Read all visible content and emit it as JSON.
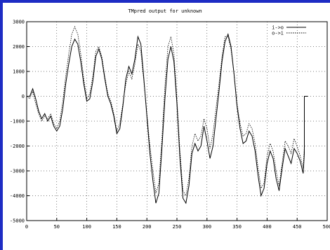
{
  "chart_data": {
    "type": "line",
    "title": "TMpred output for unknown",
    "xlim": [
      0,
      500
    ],
    "ylim": [
      -5000,
      3000
    ],
    "x_ticks": [
      0,
      50,
      100,
      150,
      200,
      250,
      300,
      350,
      400,
      450,
      500
    ],
    "x_tick_labels": [
      "0",
      "50",
      "100",
      "150",
      "200",
      "250",
      "300",
      "350",
      "400",
      "450",
      "500"
    ],
    "y_ticks": [
      -5000,
      -4000,
      -3000,
      -2000,
      -1000,
      0,
      1000,
      2000,
      3000
    ],
    "y_tick_labels": [
      "-5000",
      "-4000",
      "-3000",
      "-2000",
      "-1000",
      "0",
      "1000",
      "2000",
      "3000"
    ],
    "grid": true,
    "legend_position": "top-right",
    "series": [
      {
        "name": "i->o",
        "style": "solid",
        "points": [
          [
            0,
            0
          ],
          [
            5,
            0
          ],
          [
            10,
            300
          ],
          [
            15,
            -100
          ],
          [
            20,
            -600
          ],
          [
            25,
            -900
          ],
          [
            30,
            -700
          ],
          [
            35,
            -1000
          ],
          [
            40,
            -800
          ],
          [
            45,
            -1200
          ],
          [
            50,
            -1400
          ],
          [
            55,
            -1200
          ],
          [
            60,
            -500
          ],
          [
            65,
            500
          ],
          [
            70,
            1300
          ],
          [
            75,
            2000
          ],
          [
            80,
            2300
          ],
          [
            85,
            2100
          ],
          [
            90,
            1400
          ],
          [
            95,
            500
          ],
          [
            100,
            -200
          ],
          [
            105,
            -100
          ],
          [
            110,
            600
          ],
          [
            115,
            1600
          ],
          [
            120,
            1900
          ],
          [
            125,
            1500
          ],
          [
            130,
            700
          ],
          [
            135,
            0
          ],
          [
            140,
            -300
          ],
          [
            145,
            -800
          ],
          [
            150,
            -1500
          ],
          [
            155,
            -1300
          ],
          [
            160,
            -400
          ],
          [
            165,
            700
          ],
          [
            170,
            1200
          ],
          [
            175,
            900
          ],
          [
            180,
            1500
          ],
          [
            185,
            2400
          ],
          [
            190,
            2100
          ],
          [
            195,
            700
          ],
          [
            200,
            -800
          ],
          [
            205,
            -2300
          ],
          [
            210,
            -3400
          ],
          [
            215,
            -4300
          ],
          [
            220,
            -3900
          ],
          [
            225,
            -2100
          ],
          [
            230,
            -100
          ],
          [
            235,
            1500
          ],
          [
            240,
            2000
          ],
          [
            245,
            1400
          ],
          [
            250,
            -300
          ],
          [
            255,
            -2500
          ],
          [
            260,
            -4100
          ],
          [
            265,
            -4300
          ],
          [
            270,
            -3600
          ],
          [
            275,
            -2300
          ],
          [
            280,
            -1900
          ],
          [
            285,
            -2200
          ],
          [
            290,
            -2000
          ],
          [
            295,
            -1200
          ],
          [
            300,
            -1800
          ],
          [
            305,
            -2500
          ],
          [
            310,
            -2000
          ],
          [
            315,
            -900
          ],
          [
            320,
            200
          ],
          [
            325,
            1400
          ],
          [
            330,
            2200
          ],
          [
            335,
            2500
          ],
          [
            340,
            2000
          ],
          [
            345,
            900
          ],
          [
            350,
            -400
          ],
          [
            355,
            -1300
          ],
          [
            360,
            -1900
          ],
          [
            365,
            -1800
          ],
          [
            370,
            -1400
          ],
          [
            375,
            -1600
          ],
          [
            380,
            -2200
          ],
          [
            385,
            -3200
          ],
          [
            390,
            -4000
          ],
          [
            395,
            -3700
          ],
          [
            400,
            -2700
          ],
          [
            405,
            -2200
          ],
          [
            410,
            -2500
          ],
          [
            415,
            -3300
          ],
          [
            420,
            -3800
          ],
          [
            425,
            -2900
          ],
          [
            430,
            -2100
          ],
          [
            435,
            -2400
          ],
          [
            440,
            -2700
          ],
          [
            445,
            -2100
          ],
          [
            450,
            -2300
          ],
          [
            455,
            -2600
          ],
          [
            460,
            -3100
          ],
          [
            462,
            -2300
          ],
          [
            462,
            0
          ],
          [
            468,
            0
          ]
        ]
      },
      {
        "name": "o->i",
        "style": "dotted",
        "points": [
          [
            0,
            0
          ],
          [
            5,
            -100
          ],
          [
            10,
            200
          ],
          [
            15,
            -300
          ],
          [
            20,
            -700
          ],
          [
            25,
            -1000
          ],
          [
            30,
            -800
          ],
          [
            35,
            -900
          ],
          [
            40,
            -700
          ],
          [
            45,
            -1100
          ],
          [
            50,
            -1300
          ],
          [
            55,
            -1000
          ],
          [
            60,
            -200
          ],
          [
            65,
            800
          ],
          [
            70,
            1700
          ],
          [
            75,
            2500
          ],
          [
            80,
            2800
          ],
          [
            85,
            2500
          ],
          [
            90,
            1700
          ],
          [
            95,
            700
          ],
          [
            100,
            -100
          ],
          [
            105,
            100
          ],
          [
            110,
            800
          ],
          [
            115,
            1800
          ],
          [
            120,
            2000
          ],
          [
            125,
            1600
          ],
          [
            130,
            800
          ],
          [
            135,
            100
          ],
          [
            140,
            -200
          ],
          [
            145,
            -700
          ],
          [
            150,
            -1400
          ],
          [
            155,
            -1100
          ],
          [
            160,
            -300
          ],
          [
            165,
            500
          ],
          [
            170,
            1000
          ],
          [
            175,
            700
          ],
          [
            180,
            1300
          ],
          [
            185,
            2100
          ],
          [
            190,
            1800
          ],
          [
            195,
            600
          ],
          [
            200,
            -700
          ],
          [
            205,
            -2000
          ],
          [
            210,
            -3000
          ],
          [
            215,
            -3900
          ],
          [
            220,
            -3500
          ],
          [
            225,
            -1700
          ],
          [
            230,
            400
          ],
          [
            235,
            2000
          ],
          [
            240,
            2400
          ],
          [
            245,
            1700
          ],
          [
            250,
            -100
          ],
          [
            255,
            -2200
          ],
          [
            260,
            -3800
          ],
          [
            265,
            -4000
          ],
          [
            270,
            -3300
          ],
          [
            275,
            -2000
          ],
          [
            280,
            -1500
          ],
          [
            285,
            -1800
          ],
          [
            290,
            -1600
          ],
          [
            295,
            -900
          ],
          [
            300,
            -1300
          ],
          [
            305,
            -2100
          ],
          [
            310,
            -1500
          ],
          [
            315,
            -500
          ],
          [
            320,
            500
          ],
          [
            325,
            1600
          ],
          [
            330,
            2400
          ],
          [
            335,
            2400
          ],
          [
            340,
            1900
          ],
          [
            345,
            900
          ],
          [
            350,
            -300
          ],
          [
            355,
            -1100
          ],
          [
            360,
            -1600
          ],
          [
            365,
            -1500
          ],
          [
            370,
            -1100
          ],
          [
            375,
            -1300
          ],
          [
            380,
            -1900
          ],
          [
            385,
            -2900
          ],
          [
            390,
            -3700
          ],
          [
            395,
            -3500
          ],
          [
            400,
            -2400
          ],
          [
            405,
            -1900
          ],
          [
            410,
            -2200
          ],
          [
            415,
            -3000
          ],
          [
            420,
            -3600
          ],
          [
            425,
            -2700
          ],
          [
            430,
            -1800
          ],
          [
            435,
            -2000
          ],
          [
            440,
            -2300
          ],
          [
            445,
            -1700
          ],
          [
            450,
            -2000
          ],
          [
            455,
            -2400
          ],
          [
            460,
            -2900
          ],
          [
            462,
            -2000
          ]
        ]
      }
    ]
  }
}
